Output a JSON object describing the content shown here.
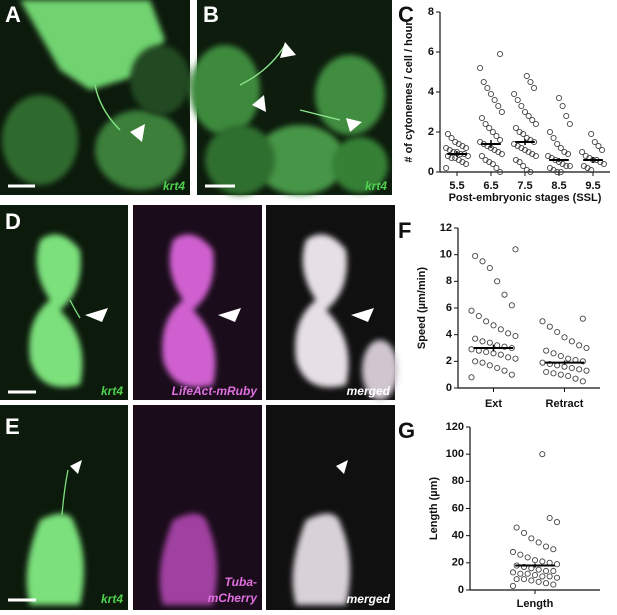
{
  "panel_labels": {
    "a": "A",
    "b": "B",
    "c": "C",
    "d": "D",
    "e": "E",
    "f": "F",
    "g": "G"
  },
  "captions": {
    "a": "krt4",
    "b": "krt4",
    "d1": "krt4",
    "d2": "LifeAct-mRuby",
    "d3": "merged",
    "e1": "krt4",
    "e2": [
      "Tuba-",
      "mCherry"
    ],
    "e3": "merged"
  },
  "chart_data": [
    {
      "type": "dotplot",
      "ylabel": "# of cytonemes / cell / hour",
      "xlabel": "Post-embryonic stages (SSL)",
      "categories": [
        "5.5",
        "6.5",
        "7.5",
        "8.5",
        "9.5"
      ],
      "points": [
        [
          0.2,
          0.4,
          0.5,
          0.6,
          0.7,
          0.7,
          0.8,
          0.8,
          0.9,
          0.9,
          1.0,
          1.0,
          1.1,
          1.2,
          1.2,
          1.3,
          1.4,
          1.5,
          1.7,
          1.9
        ],
        [
          0,
          0.2,
          0.4,
          0.5,
          0.6,
          0.8,
          0.9,
          1.0,
          1.1,
          1.2,
          1.3,
          1.4,
          1.5,
          1.6,
          1.8,
          2.0,
          2.2,
          2.4,
          2.7,
          3.0,
          3.3,
          3.6,
          3.9,
          4.2,
          4.5,
          5.2,
          5.9
        ],
        [
          0,
          0.1,
          0.3,
          0.5,
          0.6,
          0.8,
          0.9,
          1.0,
          1.1,
          1.2,
          1.3,
          1.4,
          1.5,
          1.6,
          1.7,
          1.9,
          2.0,
          2.2,
          2.4,
          2.6,
          2.8,
          3.0,
          3.3,
          3.6,
          3.9,
          4.2,
          4.5,
          4.8
        ],
        [
          0,
          0,
          0.1,
          0.2,
          0.3,
          0.3,
          0.4,
          0.5,
          0.6,
          0.7,
          0.8,
          0.9,
          1.0,
          1.2,
          1.4,
          1.7,
          2.0,
          2.4,
          2.8,
          3.3,
          3.7
        ],
        [
          0.1,
          0.2,
          0.3,
          0.4,
          0.5,
          0.6,
          0.6,
          0.7,
          0.8,
          1.0,
          1.1,
          1.3,
          1.5,
          1.9
        ]
      ],
      "means": [
        0.9,
        1.4,
        1.5,
        0.6,
        0.6
      ],
      "errors": [
        0.15,
        0.2,
        0.15,
        0.1,
        0.15
      ],
      "ylim": [
        0,
        8
      ],
      "yticks": [
        0,
        2,
        4,
        6,
        8
      ],
      "color": "#444444"
    },
    {
      "type": "dotplot",
      "ylabel": "Speed (µm/min)",
      "categories": [
        "Ext",
        "Retract"
      ],
      "points": [
        [
          0.8,
          1.0,
          1.3,
          1.5,
          1.7,
          1.9,
          2.0,
          2.2,
          2.3,
          2.5,
          2.6,
          2.7,
          2.8,
          2.9,
          3.0,
          3.1,
          3.2,
          3.4,
          3.5,
          3.7,
          3.9,
          4.1,
          4.4,
          4.7,
          5.0,
          5.4,
          5.8,
          6.2,
          7.0,
          8.0,
          9.0,
          9.5,
          9.9,
          10.4
        ],
        [
          0.5,
          0.7,
          0.9,
          1.0,
          1.1,
          1.2,
          1.3,
          1.4,
          1.5,
          1.6,
          1.7,
          1.8,
          1.9,
          2.0,
          2.1,
          2.2,
          2.4,
          2.6,
          2.8,
          3.0,
          3.2,
          3.5,
          3.8,
          4.2,
          4.6,
          5.0,
          5.2
        ]
      ],
      "means": [
        3.0,
        1.9
      ],
      "errors": [
        0.25,
        0.15
      ],
      "ylim": [
        0,
        12
      ],
      "yticks": [
        0,
        2,
        4,
        6,
        8,
        10,
        12
      ],
      "color": "#444444"
    },
    {
      "type": "dotplot",
      "ylabel": "Length (µm)",
      "categories": [
        "Length"
      ],
      "points": [
        [
          3,
          4,
          5,
          6,
          7,
          8,
          8,
          9,
          10,
          10,
          11,
          12,
          12,
          13,
          14,
          14,
          15,
          16,
          17,
          18,
          19,
          20,
          21,
          22,
          24,
          26,
          28,
          30,
          32,
          35,
          38,
          42,
          46,
          50,
          53,
          100
        ]
      ],
      "means": [
        18
      ],
      "errors": [
        1.5
      ],
      "ylim": [
        0,
        120
      ],
      "yticks": [
        0,
        20,
        40,
        60,
        80,
        100,
        120
      ],
      "color": "#444444"
    }
  ]
}
